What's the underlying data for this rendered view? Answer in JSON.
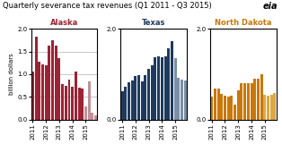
{
  "title": "Quarterly severance tax revenues (Q1 2011 - Q3 2015)",
  "annotations": [
    "eia"
  ],
  "chart_data": [
    {
      "type": "bar",
      "title": "Alaska",
      "y_label": "billion dollars",
      "categories": [
        "2011",
        null,
        null,
        null,
        "2012",
        null,
        null,
        null,
        "2013",
        null,
        null,
        null,
        "2014",
        null,
        null,
        null,
        "2015",
        null,
        null,
        null
      ],
      "values": [
        1.05,
        1.82,
        1.27,
        1.22,
        1.19,
        1.62,
        1.75,
        1.62,
        1.35,
        0.78,
        0.75,
        0.88,
        0.72,
        1.06,
        0.7,
        0.68,
        0.28,
        0.84,
        0.15,
        0.1
      ],
      "colors": [
        "#9b2335",
        "#9b2335",
        "#9b2335",
        "#9b2335",
        "#9b2335",
        "#9b2335",
        "#9b2335",
        "#9b2335",
        "#9b2335",
        "#9b2335",
        "#9b2335",
        "#9b2335",
        "#9b2335",
        "#9b2335",
        "#9b2335",
        "#9b2335",
        "#c0909a",
        "#c0909a",
        "#c0909a",
        "#c0909a"
      ],
      "ylim": [
        0,
        2.0
      ],
      "yticks": [
        {
          "value": 0,
          "label": "0.0"
        },
        0.5,
        {
          "value": 1,
          "label": "1.0"
        },
        1.5,
        {
          "value": 2,
          "label": "2.0"
        }
      ],
      "grid": true
    },
    {
      "type": "bar",
      "title": "Texas",
      "categories": [
        "2011",
        null,
        null,
        null,
        "2012",
        null,
        null,
        null,
        "2013",
        null,
        null,
        null,
        "2014",
        null,
        null,
        null,
        "2015",
        null,
        null,
        null
      ],
      "values": [
        0.63,
        0.72,
        0.83,
        0.86,
        0.95,
        0.97,
        0.85,
        0.97,
        1.12,
        1.2,
        1.38,
        1.4,
        1.38,
        1.4,
        1.58,
        1.72,
        1.35,
        0.92,
        0.88,
        0.86
      ],
      "colors": [
        "#1e3a5f",
        "#1e3a5f",
        "#1e3a5f",
        "#1e3a5f",
        "#1e3a5f",
        "#1e3a5f",
        "#1e3a5f",
        "#1e3a5f",
        "#1e3a5f",
        "#1e3a5f",
        "#1e3a5f",
        "#1e3a5f",
        "#1e3a5f",
        "#1e3a5f",
        "#1e3a5f",
        "#1e3a5f",
        "#7a8fa8",
        "#7a8fa8",
        "#7a8fa8",
        "#7a8fa8"
      ],
      "ylim": [
        0,
        2.0
      ],
      "yticks": [
        {
          "value": 0,
          "label": "0.0"
        },
        {
          "value": 2,
          "label": "2.0"
        }
      ],
      "grid": true
    },
    {
      "type": "bar",
      "title": "North Dakota",
      "categories": [
        "2011",
        null,
        null,
        null,
        "2012",
        null,
        null,
        null,
        "2013",
        null,
        null,
        null,
        "2014",
        null,
        null,
        null,
        "2015",
        null,
        null,
        null
      ],
      "values": [
        0.5,
        0.68,
        0.68,
        0.56,
        0.52,
        0.5,
        0.52,
        0.32,
        0.65,
        0.8,
        0.8,
        0.8,
        0.8,
        0.9,
        0.9,
        1.0,
        0.55,
        0.52,
        0.55,
        0.58
      ],
      "colors": [
        "#c8780a",
        "#c8780a",
        "#c8780a",
        "#c8780a",
        "#c8780a",
        "#c8780a",
        "#c8780a",
        "#c8780a",
        "#c8780a",
        "#c8780a",
        "#c8780a",
        "#c8780a",
        "#c8780a",
        "#c8780a",
        "#c8780a",
        "#c8780a",
        "#dfa840",
        "#dfa840",
        "#dfa840",
        "#dfa840"
      ],
      "ylim": [
        0,
        2.0
      ],
      "yticks": [
        {
          "value": 0,
          "label": "0.0"
        },
        {
          "value": 2,
          "label": "2.0"
        }
      ],
      "grid": true
    }
  ]
}
